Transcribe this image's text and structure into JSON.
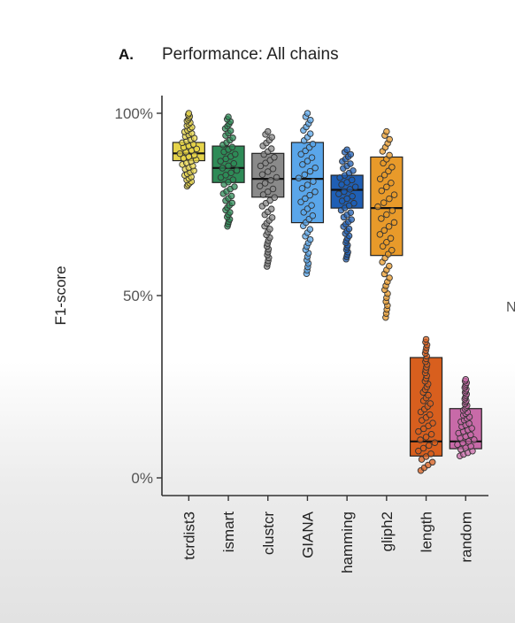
{
  "panel": {
    "letter": "A.",
    "title": "Performance: All chains"
  },
  "edge_glyph": "N",
  "chart_data": {
    "type": "boxplot",
    "ylabel": "F1-score",
    "xlabel": "",
    "ylim": [
      0,
      100
    ],
    "y_ticks": [
      {
        "value": 0,
        "label": "0%"
      },
      {
        "value": 50,
        "label": "50%"
      },
      {
        "value": 100,
        "label": "100%"
      }
    ],
    "grid": false,
    "legend": "none",
    "categories": [
      "tcrdist3",
      "ismart",
      "clustcr",
      "GIANA",
      "hamming",
      "gliph2",
      "length",
      "random"
    ],
    "boxes": [
      {
        "label": "tcrdist3",
        "q1": 87,
        "median": 89,
        "q3": 92,
        "min": 80,
        "max": 100,
        "color": "#e6d44a"
      },
      {
        "label": "ismart",
        "q1": 81,
        "median": 85,
        "q3": 91,
        "min": 69,
        "max": 99,
        "color": "#2e8b57"
      },
      {
        "label": "clustcr",
        "q1": 77,
        "median": 82,
        "q3": 89,
        "min": 58,
        "max": 95,
        "color": "#8a8a8a"
      },
      {
        "label": "GIANA",
        "q1": 70,
        "median": 82,
        "q3": 92,
        "min": 56,
        "max": 100,
        "color": "#5aa6ea"
      },
      {
        "label": "hamming",
        "q1": 74,
        "median": 79,
        "q3": 83,
        "min": 60,
        "max": 90,
        "color": "#1f5fb5"
      },
      {
        "label": "gliph2",
        "q1": 61,
        "median": 74,
        "q3": 88,
        "min": 44,
        "max": 95,
        "color": "#e89a2a"
      },
      {
        "label": "length",
        "q1": 6,
        "median": 10,
        "q3": 33,
        "min": 2,
        "max": 38,
        "color": "#d85f1e"
      },
      {
        "label": "random",
        "q1": 8,
        "median": 10,
        "q3": 19,
        "min": 6,
        "max": 27,
        "color": "#c86aa8"
      }
    ]
  }
}
